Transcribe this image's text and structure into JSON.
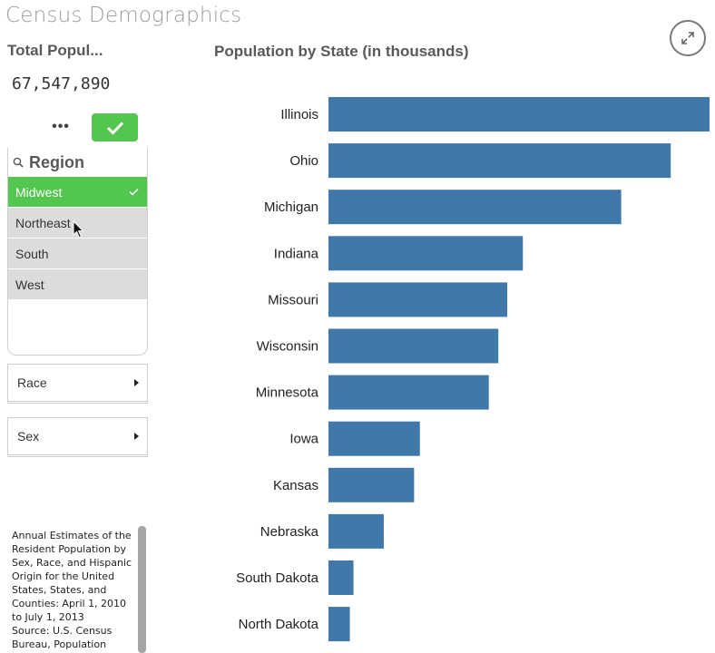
{
  "app": {
    "title": "Census Demographics"
  },
  "kpi": {
    "title": "Total Popul...",
    "value": "67,547,890"
  },
  "selection_toolbar": {
    "more_label": "•••"
  },
  "region_listbox": {
    "title": "Region",
    "items": [
      {
        "label": "Midwest",
        "selected": true
      },
      {
        "label": "Northeast",
        "selected": false
      },
      {
        "label": "South",
        "selected": false
      },
      {
        "label": "West",
        "selected": false
      }
    ]
  },
  "dimensions": [
    {
      "label": "Race"
    },
    {
      "label": "Sex"
    }
  ],
  "source_note": "Annual Estimates of the Resident Population by Sex, Race, and Hispanic Origin for the United States, States, and Counties: April 1, 2010 to July 1, 2013\nSource: U.S. Census Bureau, Population",
  "colors": {
    "bar": "#4078a9",
    "selected": "#52c64f",
    "alternative": "#dcdcdc"
  },
  "chart_data": {
    "type": "bar",
    "orientation": "horizontal",
    "title": "Population by State (in thousands)",
    "categories": [
      "Illinois",
      "Ohio",
      "Michigan",
      "Indiana",
      "Missouri",
      "Wisconsin",
      "Minnesota",
      "Iowa",
      "Kansas",
      "Nebraska",
      "South Dakota",
      "North Dakota"
    ],
    "values": [
      12882,
      11570,
      9896,
      6571,
      6044,
      5743,
      5420,
      3090,
      2894,
      1869,
      845,
      723
    ],
    "grid": false,
    "legend": "none"
  }
}
